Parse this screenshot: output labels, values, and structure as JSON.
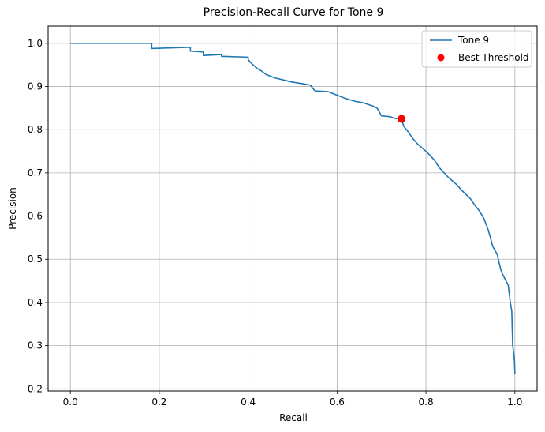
{
  "chart_data": {
    "type": "line",
    "title": "Precision-Recall Curve for Tone 9",
    "xlabel": "Recall",
    "ylabel": "Precision",
    "xlim": [
      -0.05,
      1.05
    ],
    "ylim": [
      0.195,
      1.04
    ],
    "x_ticks": [
      0.0,
      0.2,
      0.4,
      0.6,
      0.8,
      1.0
    ],
    "y_ticks": [
      0.2,
      0.3,
      0.4,
      0.5,
      0.6,
      0.7,
      0.8,
      0.9,
      1.0
    ],
    "x_tick_labels": [
      "0.0",
      "0.2",
      "0.4",
      "0.6",
      "0.8",
      "1.0"
    ],
    "y_tick_labels": [
      "0.2",
      "0.3",
      "0.4",
      "0.5",
      "0.6",
      "0.7",
      "0.8",
      "0.9",
      "1.0"
    ],
    "grid": true,
    "legend_position": "top-right",
    "series": [
      {
        "name": "Tone 9",
        "kind": "line",
        "color": "#1f77b4",
        "x": [
          0.0,
          0.183,
          0.183,
          0.27,
          0.27,
          0.3,
          0.3,
          0.34,
          0.34,
          0.4,
          0.4,
          0.41,
          0.42,
          0.43,
          0.44,
          0.46,
          0.48,
          0.5,
          0.52,
          0.54,
          0.55,
          0.58,
          0.6,
          0.62,
          0.64,
          0.66,
          0.68,
          0.69,
          0.7,
          0.72,
          0.73,
          0.745,
          0.75,
          0.76,
          0.77,
          0.78,
          0.8,
          0.81,
          0.82,
          0.83,
          0.85,
          0.87,
          0.88,
          0.9,
          0.91,
          0.92,
          0.93,
          0.94,
          0.945,
          0.95,
          0.96,
          0.965,
          0.97,
          0.98,
          0.985,
          0.99,
          0.993,
          0.995,
          0.997,
          0.999,
          1.0
        ],
        "y": [
          1.0,
          1.0,
          0.988,
          0.991,
          0.982,
          0.98,
          0.972,
          0.974,
          0.97,
          0.968,
          0.962,
          0.951,
          0.942,
          0.936,
          0.928,
          0.92,
          0.915,
          0.91,
          0.907,
          0.903,
          0.89,
          0.888,
          0.88,
          0.872,
          0.866,
          0.862,
          0.855,
          0.85,
          0.832,
          0.83,
          0.826,
          0.825,
          0.808,
          0.795,
          0.78,
          0.768,
          0.75,
          0.74,
          0.728,
          0.712,
          0.69,
          0.672,
          0.66,
          0.64,
          0.625,
          0.612,
          0.595,
          0.568,
          0.55,
          0.53,
          0.512,
          0.49,
          0.47,
          0.45,
          0.44,
          0.398,
          0.38,
          0.3,
          0.285,
          0.265,
          0.235
        ]
      },
      {
        "name": "Best Threshold",
        "kind": "scatter",
        "color": "#ff0000",
        "x": [
          0.745
        ],
        "y": [
          0.825
        ]
      }
    ]
  }
}
